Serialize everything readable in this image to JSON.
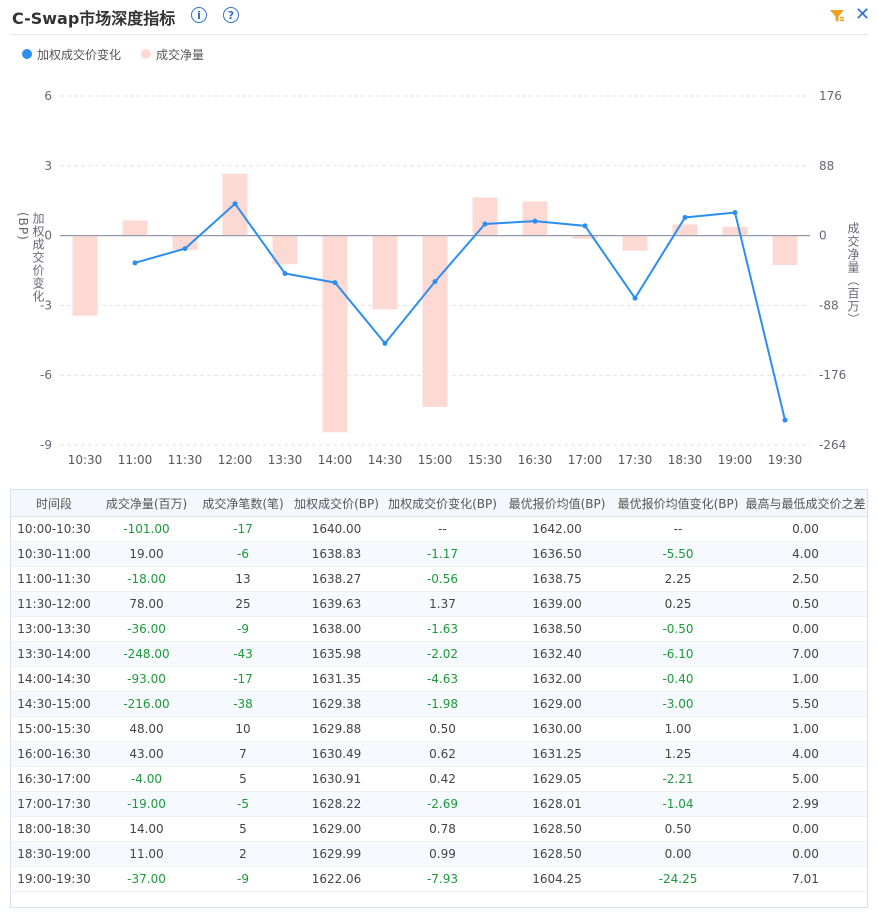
{
  "header": {
    "title": "C-Swap市场深度指标",
    "info_icon": "info-icon",
    "help_icon": "help-icon",
    "filter_icon": "filter-icon",
    "close_icon": "close-icon",
    "close_glyph": "✕"
  },
  "legend": {
    "line_label": "加权成交价变化",
    "bar_label": "成交净量"
  },
  "colors": {
    "line": "#2b8ef0",
    "bar": "#fdd9d3",
    "positive": "#444444",
    "negative": "#1c9a3a",
    "accent": "#2f6fd6"
  },
  "chart_data": {
    "type": "bar+line",
    "categories": [
      "10:30",
      "11:00",
      "11:30",
      "12:00",
      "13:30",
      "14:00",
      "14:30",
      "15:00",
      "15:30",
      "16:30",
      "17:00",
      "17:30",
      "18:30",
      "19:00",
      "19:30"
    ],
    "series": [
      {
        "name": "成交净量",
        "type": "bar",
        "axis": "right",
        "values": [
          -101,
          19,
          -18,
          78,
          -36,
          -248,
          -93,
          -216,
          48,
          43,
          -4,
          -19,
          14,
          11,
          -37
        ]
      },
      {
        "name": "加权成交价变化",
        "type": "line",
        "axis": "left",
        "values": [
          null,
          -1.17,
          -0.56,
          1.37,
          -1.63,
          -2.02,
          -4.63,
          -1.98,
          0.5,
          0.62,
          0.42,
          -2.69,
          0.78,
          0.99,
          -7.93
        ]
      }
    ],
    "y_left": {
      "label": "加权成交价变化(BP)",
      "ticks": [
        6,
        3,
        0,
        -3,
        -6,
        -9
      ],
      "ylim": [
        -9,
        6
      ]
    },
    "y_right": {
      "label": "成交净量（百万）",
      "ticks": [
        176,
        88,
        0,
        -88,
        -176,
        -264
      ],
      "ylim": [
        -264,
        176
      ]
    },
    "grid": true,
    "legend_position": "top-left"
  },
  "table": {
    "columns": [
      "时间段",
      "成交净量(百万)",
      "成交净笔数(笔)",
      "加权成交价(BP)",
      "加权成交价变化(BP)",
      "最优报价均值(BP)",
      "最优报价均值变化(BP)",
      "最高与最低成交价之差"
    ],
    "rows": [
      [
        "10:00-10:30",
        "-101.00",
        "-17",
        "1640.00",
        "--",
        "1642.00",
        "--",
        "0.00"
      ],
      [
        "10:30-11:00",
        "19.00",
        "-6",
        "1638.83",
        "-1.17",
        "1636.50",
        "-5.50",
        "4.00"
      ],
      [
        "11:00-11:30",
        "-18.00",
        "13",
        "1638.27",
        "-0.56",
        "1638.75",
        "2.25",
        "2.50"
      ],
      [
        "11:30-12:00",
        "78.00",
        "25",
        "1639.63",
        "1.37",
        "1639.00",
        "0.25",
        "0.50"
      ],
      [
        "13:00-13:30",
        "-36.00",
        "-9",
        "1638.00",
        "-1.63",
        "1638.50",
        "-0.50",
        "0.00"
      ],
      [
        "13:30-14:00",
        "-248.00",
        "-43",
        "1635.98",
        "-2.02",
        "1632.40",
        "-6.10",
        "7.00"
      ],
      [
        "14:00-14:30",
        "-93.00",
        "-17",
        "1631.35",
        "-4.63",
        "1632.00",
        "-0.40",
        "1.00"
      ],
      [
        "14:30-15:00",
        "-216.00",
        "-38",
        "1629.38",
        "-1.98",
        "1629.00",
        "-3.00",
        "5.50"
      ],
      [
        "15:00-15:30",
        "48.00",
        "10",
        "1629.88",
        "0.50",
        "1630.00",
        "1.00",
        "1.00"
      ],
      [
        "16:00-16:30",
        "43.00",
        "7",
        "1630.49",
        "0.62",
        "1631.25",
        "1.25",
        "4.00"
      ],
      [
        "16:30-17:00",
        "-4.00",
        "5",
        "1630.91",
        "0.42",
        "1629.05",
        "-2.21",
        "5.00"
      ],
      [
        "17:00-17:30",
        "-19.00",
        "-5",
        "1628.22",
        "-2.69",
        "1628.01",
        "-1.04",
        "2.99"
      ],
      [
        "18:00-18:30",
        "14.00",
        "5",
        "1629.00",
        "0.78",
        "1628.50",
        "0.50",
        "0.00"
      ],
      [
        "18:30-19:00",
        "11.00",
        "2",
        "1629.99",
        "0.99",
        "1628.50",
        "0.00",
        "0.00"
      ],
      [
        "19:00-19:30",
        "-37.00",
        "-9",
        "1622.06",
        "-7.93",
        "1604.25",
        "-24.25",
        "7.01"
      ]
    ]
  }
}
